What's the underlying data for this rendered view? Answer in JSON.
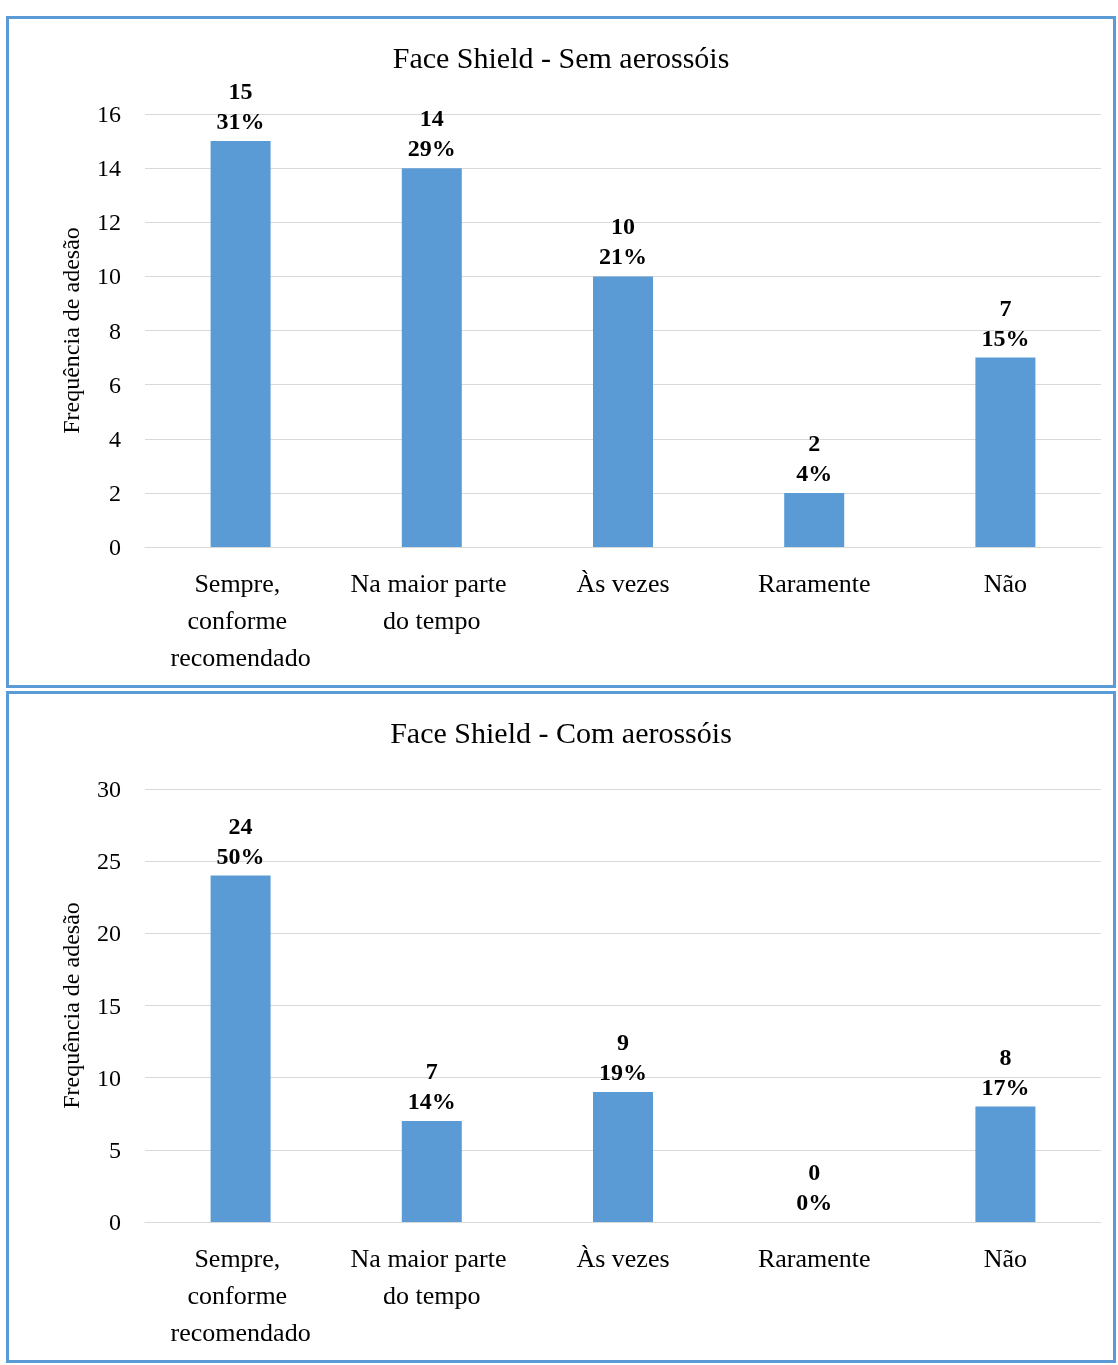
{
  "chart_data": [
    {
      "type": "bar",
      "title": "Face Shield - Sem aerossóis",
      "ylabel": "Frequência de adesão",
      "categories": [
        "Sempre, conforme recomendado",
        "Na maior parte do tempo",
        "Às vezes",
        "Raramente",
        "Não"
      ],
      "values": [
        15,
        14,
        10,
        2,
        7
      ],
      "value_labels": [
        "15\n31%",
        "14\n29%",
        "10\n21%",
        "2\n4%",
        "7\n15%"
      ],
      "color": "#5b9bd5",
      "ylim": [
        0,
        16
      ],
      "yticks": [
        0,
        2,
        4,
        6,
        8,
        10,
        12,
        14,
        16
      ],
      "grid": "y"
    },
    {
      "type": "bar",
      "title": "Face Shield - Com aerossóis",
      "ylabel": "Frequência de adesão",
      "categories": [
        "Sempre, conforme recomendado",
        "Na maior parte do tempo",
        "Às vezes",
        "Raramente",
        "Não"
      ],
      "values": [
        24,
        7,
        9,
        0,
        8
      ],
      "value_labels": [
        "24\n50%",
        "7\n14%",
        "9\n19%",
        "0\n0%",
        "8\n17%"
      ],
      "color": "#5b9bd5",
      "ylim": [
        0,
        30
      ],
      "yticks": [
        0,
        5,
        10,
        15,
        20,
        25,
        30
      ],
      "grid": "y"
    }
  ]
}
